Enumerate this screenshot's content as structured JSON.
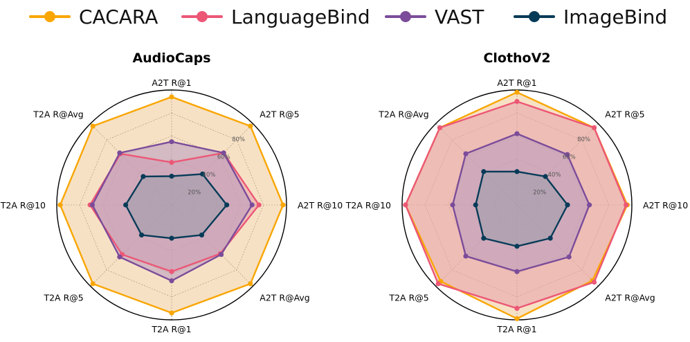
{
  "legend": [
    {
      "name": "CACARA",
      "color": "#F9A602"
    },
    {
      "name": "LanguageBind",
      "color": "#EC5776"
    },
    {
      "name": "VAST",
      "color": "#7B4C9A"
    },
    {
      "name": "ImageBind",
      "color": "#063B58"
    }
  ],
  "chart_data": [
    {
      "type": "radar",
      "title": "AudioCaps",
      "axes": [
        "A2T R@1",
        "A2T R@5",
        "A2T R@10",
        "A2T R@Avg",
        "T2A R@1",
        "T2A R@5",
        "T2A R@10",
        "T2A R@Avg"
      ],
      "rlim": [
        0,
        100
      ],
      "rticks": [
        "20%",
        "40%",
        "60%",
        "80%"
      ],
      "series": [
        {
          "name": "CACARA",
          "color": "#F9A602",
          "fill": "#F0C896",
          "values": [
            94,
            97,
            97,
            97,
            94,
            97,
            97,
            97
          ]
        },
        {
          "name": "LanguageBind",
          "color": "#EC5776",
          "fill": "#E8A0A8",
          "values": [
            37,
            64,
            76,
            60,
            58,
            61,
            71,
            63
          ]
        },
        {
          "name": "VAST",
          "color": "#7B4C9A",
          "fill": "#B89AC0",
          "values": [
            55,
            64,
            70,
            61,
            66,
            64,
            69,
            64
          ]
        },
        {
          "name": "ImageBind",
          "color": "#063B58",
          "fill": "#9A9AAA",
          "values": [
            25,
            38,
            48,
            37,
            29,
            37,
            40,
            35
          ]
        }
      ]
    },
    {
      "type": "radar",
      "title": "ClothoV2",
      "axes": [
        "A2T R@1",
        "A2T R@5",
        "A2T R@10",
        "A2T R@Avg",
        "T2A R@1",
        "T2A R@5",
        "T2A R@10",
        "T2A R@Avg"
      ],
      "rlim": [
        0,
        100
      ],
      "rticks": [
        "20%",
        "40%",
        "60%",
        "80%"
      ],
      "series": [
        {
          "name": "CACARA",
          "color": "#F9A602",
          "fill": "#F0C896",
          "values": [
            98,
            95,
            96,
            93,
            99,
            94,
            97,
            95
          ]
        },
        {
          "name": "LanguageBind",
          "color": "#EC5776",
          "fill": "#E8A0A8",
          "values": [
            90,
            95,
            95,
            95,
            90,
            97,
            97,
            95
          ]
        },
        {
          "name": "VAST",
          "color": "#7B4C9A",
          "fill": "#B89AC0",
          "values": [
            62,
            62,
            63,
            64,
            58,
            63,
            56,
            63
          ]
        },
        {
          "name": "ImageBind",
          "color": "#063B58",
          "fill": "#9A9AAA",
          "values": [
            29,
            35,
            44,
            41,
            36,
            41,
            36,
            41
          ]
        }
      ]
    }
  ]
}
